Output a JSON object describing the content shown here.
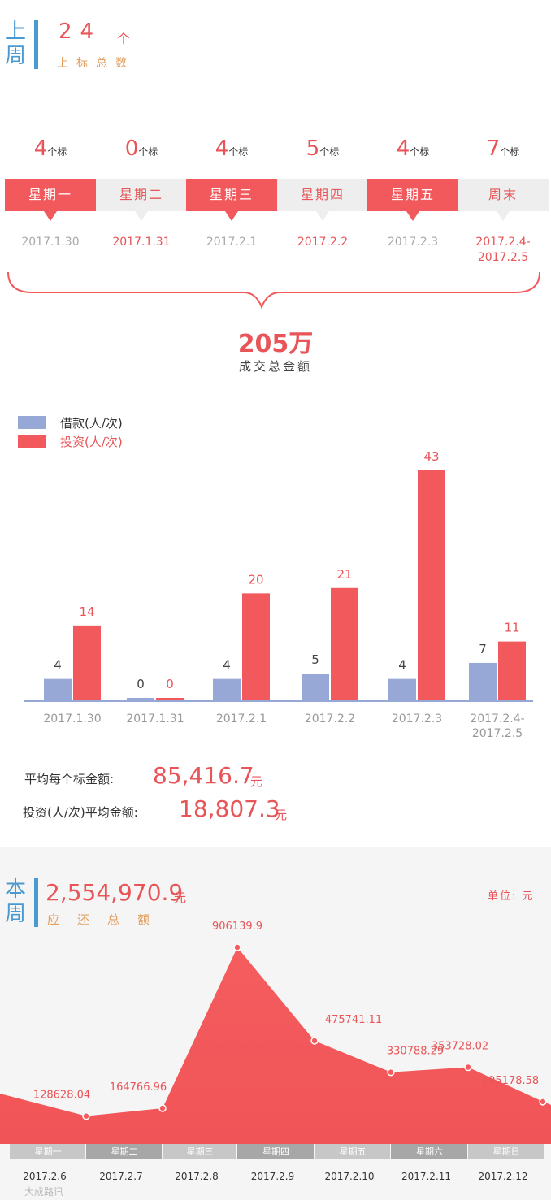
{
  "last_week": {
    "title": "上周",
    "total_count": "24",
    "count_unit": "个",
    "count_label": "上标总数",
    "days": [
      {
        "count": "4",
        "unit": "个标",
        "day": "星期一",
        "date": "2017.1.30",
        "style": "red"
      },
      {
        "count": "0",
        "unit": "个标",
        "day": "星期二",
        "date": "2017.1.31",
        "style": "grey"
      },
      {
        "count": "4",
        "unit": "个标",
        "day": "星期三",
        "date": "2017.2.1",
        "style": "red"
      },
      {
        "count": "5",
        "unit": "个标",
        "day": "星期四",
        "date": "2017.2.2",
        "style": "grey"
      },
      {
        "count": "4",
        "unit": "个标",
        "day": "星期五",
        "date": "2017.2.3",
        "style": "red"
      },
      {
        "count": "7",
        "unit": "个标",
        "day": "周末",
        "date": "2017.2.4-\n2017.2.5",
        "style": "grey"
      }
    ],
    "deal_total": "205万",
    "deal_label": "成交总金额",
    "avg_per_bid_label": "平均每个标金额:",
    "avg_per_bid_value": "85,416.7",
    "avg_per_bid_unit": "元",
    "avg_per_invest_label": "投资(人/次)平均金额:",
    "avg_per_invest_value": "18,807.3",
    "avg_per_invest_unit": "元"
  },
  "this_week": {
    "title": "本周",
    "total_amount": "2,554,970.9",
    "amount_unit": "元",
    "amount_label": "应还总额",
    "unit_note": "单位: 元"
  },
  "watermark": "大成路讯",
  "colors": {
    "blue_accent": "#4a9ad1",
    "red": "#f2595c",
    "red_text": "#e85558",
    "orange_text": "#e2a05f",
    "bar_blue": "#97a7d6",
    "area_red": "#f45d5f"
  },
  "chart_data": [
    {
      "type": "bar",
      "categories": [
        "2017.1.30",
        "2017.1.31",
        "2017.2.1",
        "2017.2.2",
        "2017.2.3",
        "2017.2.4-\n2017.2.5"
      ],
      "series": [
        {
          "name": "借款(人/次)",
          "values": [
            4,
            0,
            4,
            5,
            4,
            7
          ],
          "color": "#97a7d6"
        },
        {
          "name": "投资(人/次)",
          "values": [
            14,
            0,
            20,
            21,
            43,
            11
          ],
          "color": "#f2595c"
        }
      ],
      "ylim": [
        0,
        43
      ],
      "legend": "top-left",
      "grid": false
    },
    {
      "type": "area",
      "categories": [
        "星期一",
        "星期二",
        "星期三",
        "星期四",
        "星期五",
        "星期六",
        "星期日"
      ],
      "dates": [
        "2017.2.6",
        "2017.2.7",
        "2017.2.8",
        "2017.2.9",
        "2017.2.10",
        "2017.2.11",
        "2017.2.12"
      ],
      "values": [
        128628.04,
        164766.96,
        906139.9,
        475741.11,
        330788.29,
        353728.02,
        195178.58
      ],
      "ylim": [
        0,
        906139.9
      ],
      "grid": false
    }
  ]
}
